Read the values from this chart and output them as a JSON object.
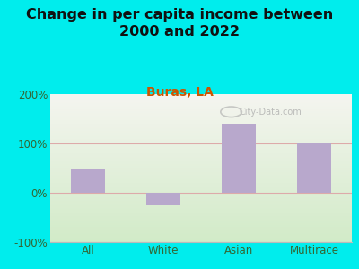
{
  "title": "Change in per capita income between\n2000 and 2022",
  "subtitle": "Buras, LA",
  "categories": [
    "All",
    "White",
    "Asian",
    "Multirace"
  ],
  "values": [
    50,
    -25,
    140,
    100
  ],
  "bar_color": "#b8a8cc",
  "background_color": "#00eded",
  "plot_bg_top": "#f5f5f0",
  "plot_bg_bottom": "#d8ecd0",
  "title_fontsize": 11.5,
  "subtitle_fontsize": 10,
  "subtitle_color": "#cc5500",
  "title_color": "#111111",
  "tick_color": "#336633",
  "ylim": [
    -100,
    200
  ],
  "yticks": [
    -100,
    0,
    100,
    200
  ],
  "ytick_labels": [
    "-100%",
    "0%",
    "100%",
    "200%"
  ],
  "hline_color": "#ddaaaa",
  "watermark": "City-Data.com"
}
